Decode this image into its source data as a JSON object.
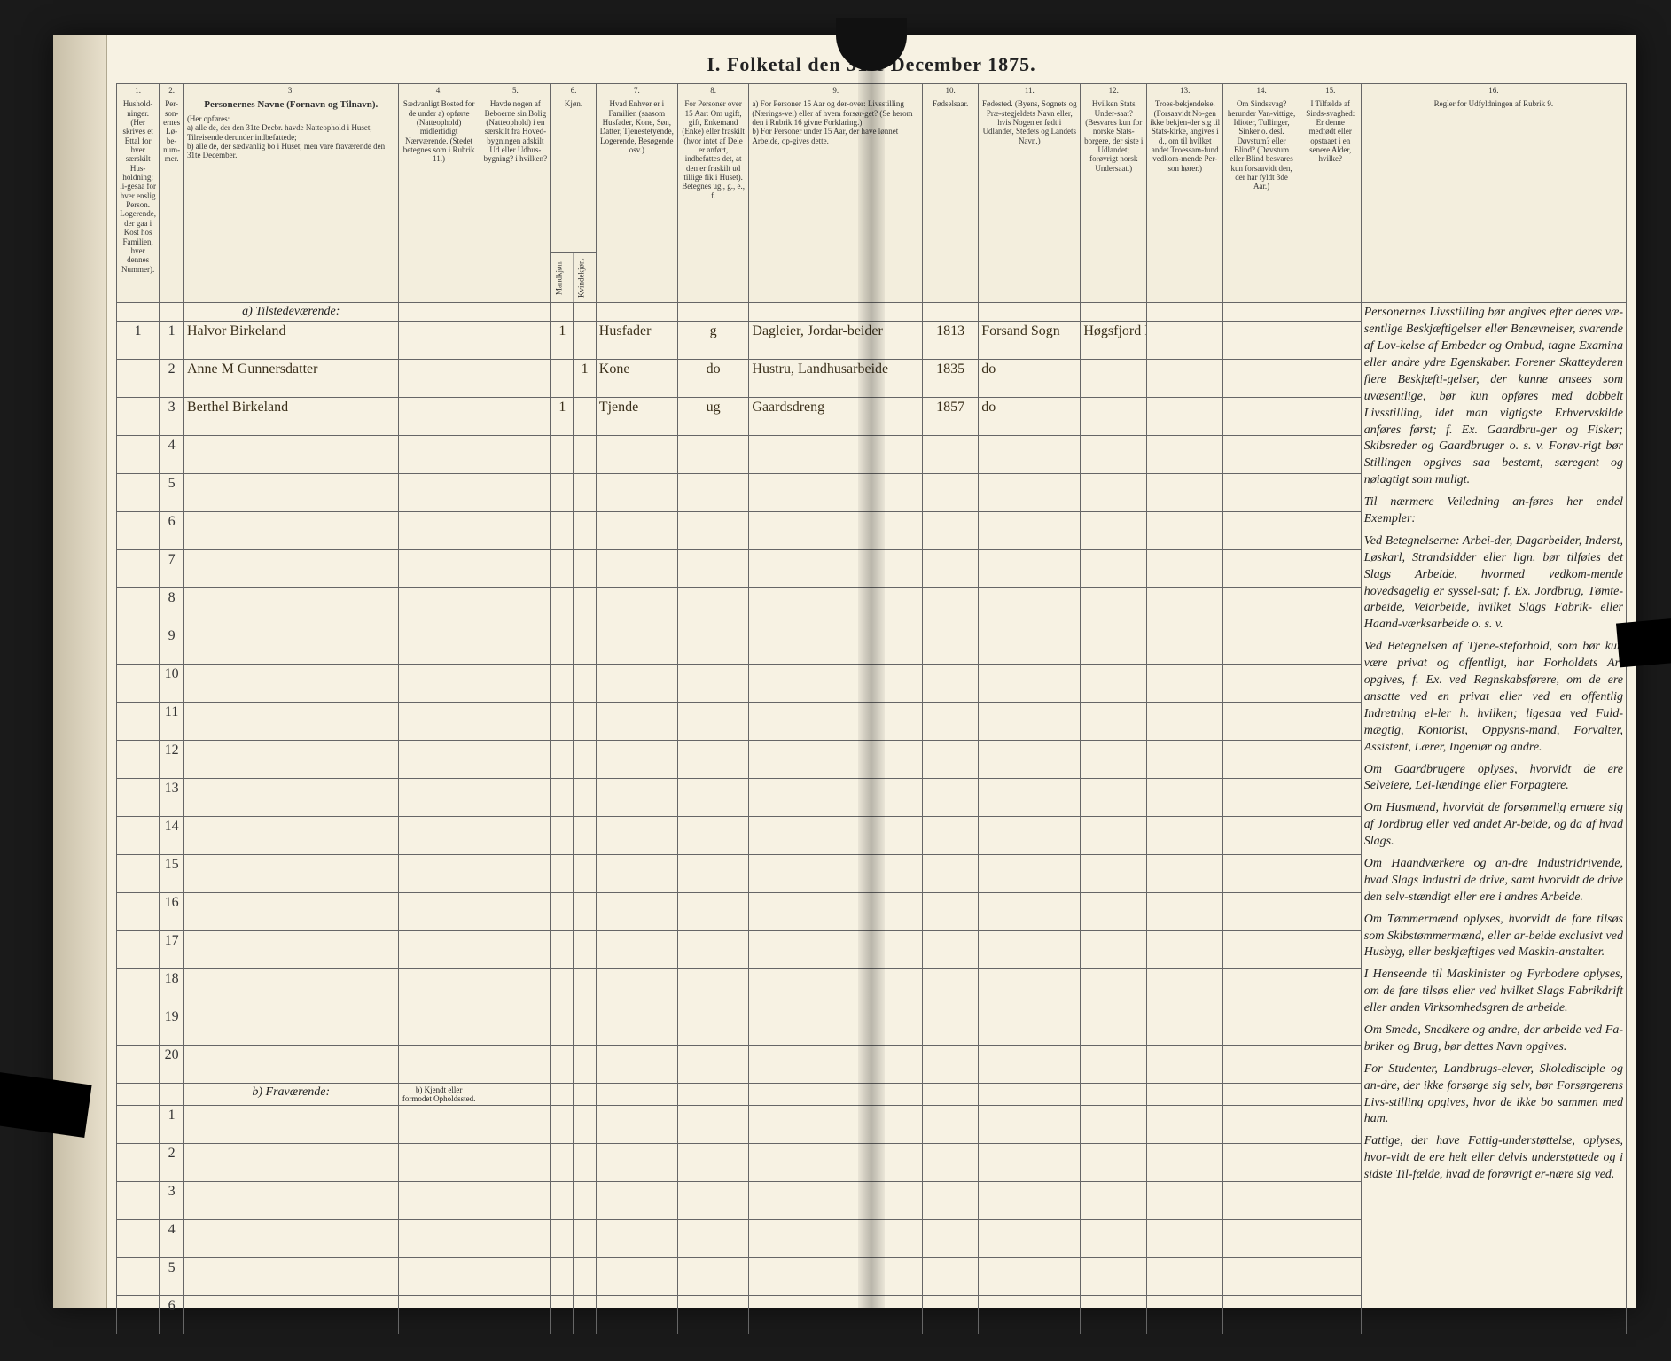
{
  "title": "I.  Folketal den 31te December 1875.",
  "col_numbers": [
    "1.",
    "2.",
    "3.",
    "4.",
    "5.",
    "6.",
    "7.",
    "8.",
    "9.",
    "10.",
    "11.",
    "12.",
    "13.",
    "14.",
    "15.",
    "16."
  ],
  "headers": {
    "c1": "Hushold-ninger. (Her skrives et Ettal for hver særskilt Hus-holdning; li-gesaa for hver enslig Person. Logerende, der gaa i Kost hos Familien, hver dennes Nummer).",
    "c2": "Per-son-ernes Lø-be-num-mer.",
    "c3_title": "Personernes Navne  (Fornavn og Tilnavn).",
    "c3_body": "(Her opføres:\na) alle de, der den 31te Decbr. havde Natteophold i Huset, Tilreisende derunder indbefattede;\nb) alle de, der sædvanlig bo i Huset, men vare fraværende den 31te December.",
    "c4": "Sædvanligt Bosted for de under a) opførte (Natteophold) midlertidigt Nærværende. (Stedet betegnes som i Rubrik 11.)",
    "c5": "Havde nogen af Beboerne sin Bolig (Natteophold) i en særskilt fra Hoved-bygningen adskilt Ud eller Udhus-bygning? i hvilken?",
    "c6": "Kjøn.",
    "c6a": "Mandkjøn.",
    "c6b": "Kvindekjøn.",
    "c7": "Hvad Enhver er i Familien (saasom Husfader, Kone, Søn, Datter, Tjenestetyende, Logerende, Besøgende osv.)",
    "c8": "For Personer over 15 Aar: Om ugift, gift, Enkemand (Enke) eller fraskilt (hvor intet af Dele er anført, indbefattes det, at den er fraskilt ud tillige fik i Huset). Betegnes ug., g., e., f.",
    "c9": "a) For Personer 15 Aar og der-over: Livsstilling (Nærings-vei) eller af hvem forsør-get? (Se herom den i Rubrik 16 givne Forklaring.)\nb) For Personer under 15 Aar, der have lønnet Arbeide, op-gives dette.",
    "c10": "Fødselsaar.",
    "c11": "Fødested. (Byens, Sognets og Præ-stegjeldets Navn eller, hvis Nogen er født i Udlandet, Stedets og Landets Navn.)",
    "c12": "Hvilken Stats Under-saat? (Besvares kun for norske Stats-borgere, der siste i Udlandet; forøvrigt norsk Undersaat.)",
    "c13": "Troes-bekjendelse. (Forsaavidt No-gen ikke bekjen-der sig til Stats-kirke, angives i d., om til hvilket andet Troessam-fund vedkom-mende Per-son hører.)",
    "c14": "Om Sindssvag? herunder Van-vittige, Idioter, Tullinger, Sinker o. desl. Døvstum? eller Blind? (Døvstum eller Blind besvares kun forsaavidt den, der har fyldt 3de Aar.)",
    "c15": "I Tilfælde af Sinds-svaghed: Er denne medfødt eller opstaaet i en senere Alder, hvilke?",
    "c16_title": "Regler for Udfyldningen af Rubrik 9."
  },
  "section_a": "a)  Tilstedeværende:",
  "section_b": "b)  Fraværende:",
  "section_b_col4": "b) Kjendt eller formodet Opholdssted.",
  "rows_a": [
    {
      "num": "1",
      "name": "Halvor Birkeland",
      "c5": "",
      "m": "1",
      "k": "",
      "fam": "Husfader",
      "stat": "g",
      "occ": "Dagleier, Jordar-beider",
      "year": "1813",
      "place": "Forsand Sogn",
      "col12": "Høgsfjord Pgd."
    },
    {
      "num": "2",
      "name": "Anne M Gunnersdatter",
      "c5": "",
      "m": "",
      "k": "1",
      "fam": "Kone",
      "stat": "do",
      "occ": "Hustru, Landhusarbeide",
      "year": "1835",
      "place": "do",
      "col12": ""
    },
    {
      "num": "3",
      "name": "Berthel Birkeland",
      "c5": "",
      "m": "1",
      "k": "",
      "fam": "Tjende",
      "stat": "ug",
      "occ": "Gaardsdreng",
      "year": "1857",
      "place": "do",
      "col12": ""
    }
  ],
  "empty_a_count": 17,
  "empty_b_count": 6,
  "instructions_paragraphs": [
    "Personernes Livsstilling bør angives efter deres væ-sentlige Beskjæftigelser eller Benævnelser, svarende af Lov-kelse af Embeder og Ombud, tagne Examina eller andre ydre Egenskaber. Forener Skatteyderen flere Beskjæfti-gelser, der kunne ansees som uvæsentlige, bør kun opføres med dobbelt Livsstilling, idet man vigtigste Erhvervskilde anføres først; f. Ex. Gaardbru-ger og Fisker; Skibsreder og Gaardbruger o. s. v. Forøv-rigt bør Stillingen opgives saa bestemt, særegent og nøiagtigt som muligt.",
    "Til nærmere Veiledning an-føres her endel Exempler:",
    "Ved Betegnelserne: Arbei-der, Dagarbeider, Inderst, Løskarl, Strandsidder eller lign. bør tilføies det Slags Arbeide, hvormed vedkom-mende hovedsagelig er syssel-sat; f. Ex. Jordbrug, Tømte-arbeide, Veiarbeide, hvilket Slags Fabrik- eller Haand-værksarbeide o. s. v.",
    "Ved Betegnelsen af Tjene-steforhold, som bør kun være privat og offentligt, har Forholdets Art opgives, f. Ex. ved Regnskabsførere, om de ere ansatte ved en privat eller ved en offentlig Indretning el-ler h. hvilken; ligesaa ved Fuld-mægtig, Kontorist, Oppysns-mand, Forvalter, Assistent, Lærer, Ingeniør og andre.",
    "Om Gaardbrugere oplyses, hvorvidt de ere Selveiere, Lei-lændinge eller Forpagtere.",
    "Om Husmænd, hvorvidt de forsømmelig ernære sig af Jordbrug eller ved andet Ar-beide, og da af hvad Slags.",
    "Om Haandværkere og an-dre Industridrivende, hvad Slags Industri de drive, samt hvorvidt de drive den selv-stændigt eller ere i andres Arbeide.",
    "Om Tømmermænd oplyses, hvorvidt de fare tilsøs som Skibstømmermænd, eller ar-beide exclusivt ved Husbyg, eller beskjæftiges ved Maskin-anstalter.",
    "I Henseende til Maskinister og Fyrbodere oplyses, om de fare tilsøs eller ved hvilket Slags Fabrikdrift eller anden Virksomhedsgren de arbeide.",
    "Om Smede, Snedkere og andre, der arbeide ved Fa-briker og Brug, bør dettes Navn opgives.",
    "For Studenter, Landbrugs-elever, Skoledisciple og an-dre, der ikke forsørge sig selv, bør Forsørgerens Livs-stilling opgives, hvor de ikke bo sammen med ham.",
    "Fattige, der have Fattig-understøttelse, oplyses, hvor-vidt de ere helt eller delvis understøttede og i sidste Til-fælde, hvad de forøvrigt er-nære sig ved."
  ],
  "colors": {
    "paper": "#f7f2e3",
    "ink": "#333333",
    "rule": "#666666",
    "handwriting": "#3a2f1a",
    "background": "#1a1a1a"
  }
}
